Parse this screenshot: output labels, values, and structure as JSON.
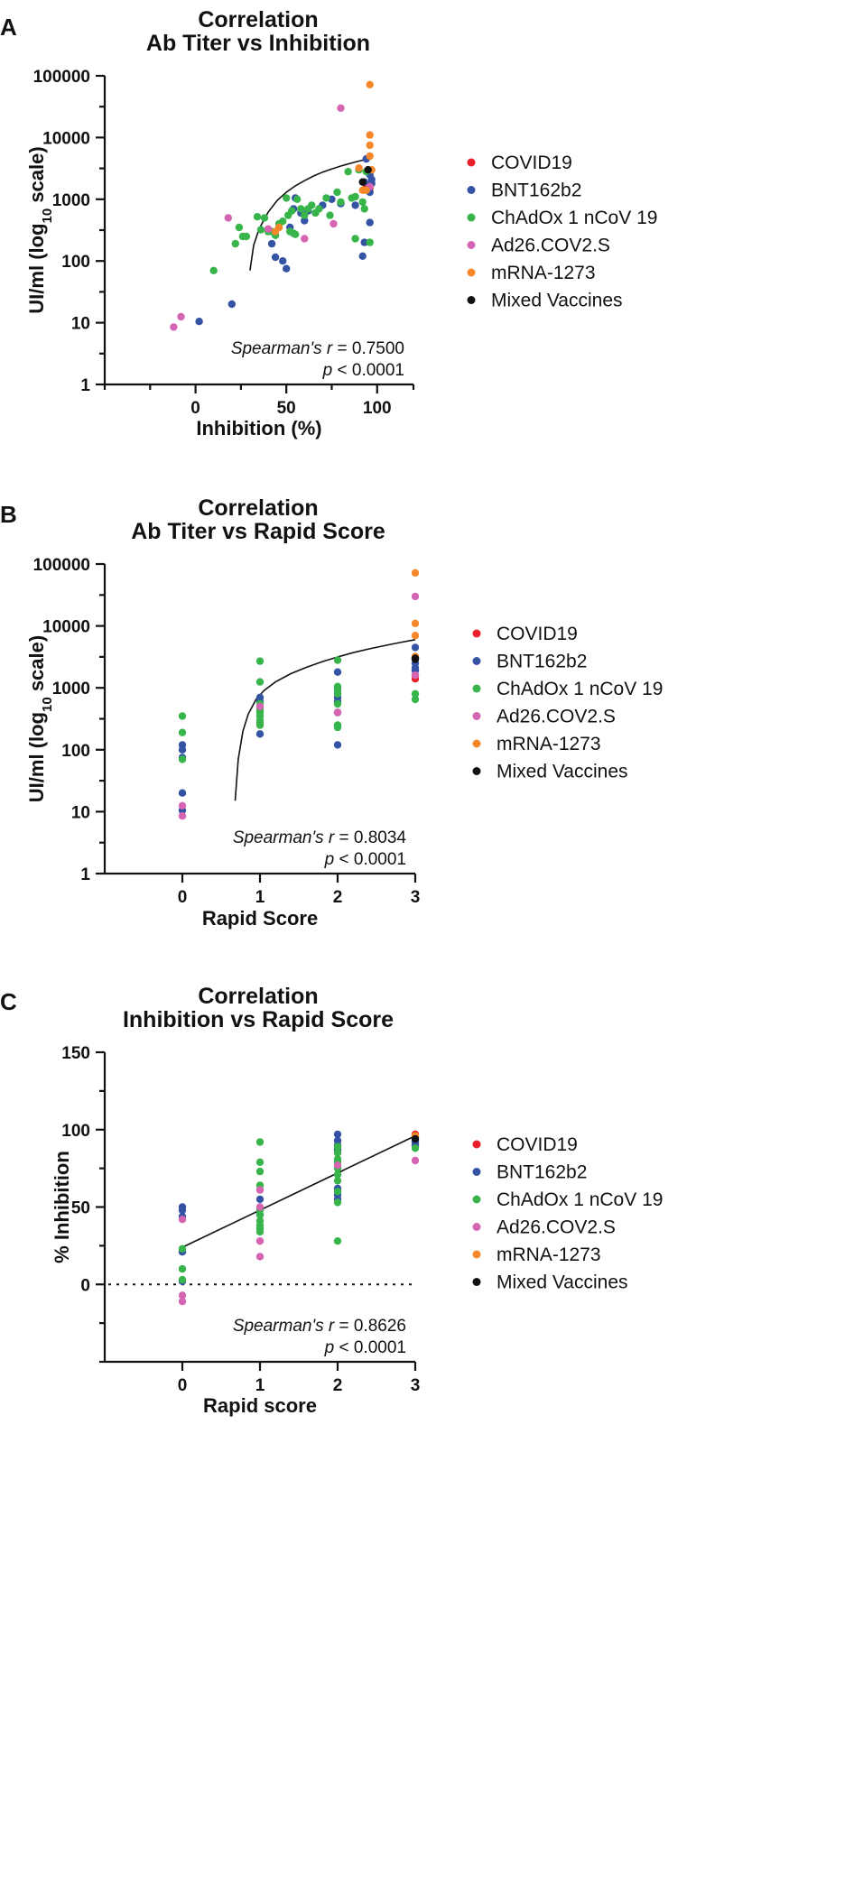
{
  "panels": [
    {
      "letter": "A",
      "title_line1": "Correlation",
      "title_line2": "Ab Titer vs Inhibition",
      "ylabel": "UI/ml (log",
      "ylabel_sub": "10",
      "ylabel_tail": " scale)",
      "xlabel": "Inhibition (%)",
      "stat_label": "Spearman's r",
      "stat_value": " = 0.7500",
      "p_label": "p",
      "p_value": " < 0.0001"
    },
    {
      "letter": "B",
      "title_line1": "Correlation",
      "title_line2": "Ab Titer vs Rapid Score",
      "ylabel": "UI/ml (log",
      "ylabel_sub": "10",
      "ylabel_tail": " scale)",
      "xlabel": "Rapid Score",
      "stat_label": "Spearman's r",
      "stat_value": " = 0.8034",
      "p_label": "p",
      "p_value": " < 0.0001"
    },
    {
      "letter": "C",
      "title_line1": "Correlation",
      "title_line2": "Inhibition vs Rapid Score",
      "ylabel": "% Inhibition",
      "xlabel": "Rapid score",
      "stat_label": "Spearman's r",
      "stat_value": " = 0.8626",
      "p_label": "p",
      "p_value": " < 0.0001"
    }
  ],
  "legend": [
    {
      "name": "COVID19",
      "color": "#e8202a"
    },
    {
      "name": "BNT162b2",
      "color": "#3553a5"
    },
    {
      "name": "ChAdOx 1 nCoV 19",
      "color": "#38b54a"
    },
    {
      "name": "Ad26.COV2.S",
      "color": "#d565b3"
    },
    {
      "name": "mRNA-1273",
      "color": "#f5882b"
    },
    {
      "name": "Mixed Vaccines",
      "color": "#111111"
    }
  ],
  "chart_data": [
    {
      "type": "scatter",
      "title": "Correlation Ab Titer vs Inhibition",
      "xlabel": "Inhibition (%)",
      "ylabel": "UI/ml (log10 scale)",
      "xlim": [
        -50,
        120
      ],
      "ylim": [
        1,
        100000
      ],
      "yscale": "log",
      "xticks": [
        "0",
        "50",
        "100"
      ],
      "xtick_values": [
        0,
        50,
        100
      ],
      "yticks": [
        "1",
        "10",
        "100",
        "1000",
        "10000",
        "100000"
      ],
      "ytick_values": [
        1,
        10,
        100,
        1000,
        10000,
        100000
      ],
      "fit": {
        "kind": "log",
        "x": [
          30,
          32,
          35,
          40,
          45,
          50,
          55,
          60,
          65,
          70,
          75,
          80,
          85,
          90,
          95,
          97
        ],
        "y": [
          70,
          180,
          330,
          620,
          960,
          1300,
          1650,
          2000,
          2380,
          2750,
          3100,
          3450,
          3800,
          4150,
          4500,
          4650
        ]
      },
      "series": [
        {
          "name": "COVID19",
          "points": [
            [
              94,
              1700
            ],
            [
              96,
              1500
            ]
          ]
        },
        {
          "name": "BNT162b2",
          "points": [
            [
              2,
              10.5
            ],
            [
              20,
              20
            ],
            [
              42,
              190
            ],
            [
              44,
              115
            ],
            [
              48,
              100
            ],
            [
              50,
              75
            ],
            [
              52,
              350
            ],
            [
              54,
              700
            ],
            [
              55,
              1050
            ],
            [
              58,
              600
            ],
            [
              60,
              450
            ],
            [
              62,
              650
            ],
            [
              70,
              800
            ],
            [
              75,
              1000
            ],
            [
              80,
              850
            ],
            [
              88,
              800
            ],
            [
              92,
              120
            ],
            [
              93,
              200
            ],
            [
              93,
              1900
            ],
            [
              94,
              4500
            ],
            [
              95,
              3000
            ],
            [
              96,
              2500
            ],
            [
              96,
              1300
            ],
            [
              96,
              420
            ],
            [
              97,
              2100
            ],
            [
              97,
              1800
            ]
          ]
        },
        {
          "name": "ChAdOx 1 nCoV 19",
          "points": [
            [
              10,
              70
            ],
            [
              22,
              190
            ],
            [
              24,
              350
            ],
            [
              26,
              250
            ],
            [
              28,
              250
            ],
            [
              34,
              520
            ],
            [
              36,
              320
            ],
            [
              38,
              500
            ],
            [
              40,
              300
            ],
            [
              42,
              300
            ],
            [
              44,
              260
            ],
            [
              46,
              400
            ],
            [
              48,
              440
            ],
            [
              50,
              1050
            ],
            [
              51,
              550
            ],
            [
              52,
              300
            ],
            [
              53,
              650
            ],
            [
              54,
              280
            ],
            [
              55,
              270
            ],
            [
              56,
              1000
            ],
            [
              58,
              700
            ],
            [
              60,
              550
            ],
            [
              62,
              700
            ],
            [
              64,
              800
            ],
            [
              66,
              600
            ],
            [
              68,
              700
            ],
            [
              72,
              1050
            ],
            [
              74,
              550
            ],
            [
              78,
              1300
            ],
            [
              80,
              900
            ],
            [
              84,
              2800
            ],
            [
              86,
              1050
            ],
            [
              88,
              230
            ],
            [
              88,
              1100
            ],
            [
              90,
              3000
            ],
            [
              92,
              900
            ],
            [
              93,
              700
            ],
            [
              94,
              2800
            ],
            [
              96,
              200
            ]
          ]
        },
        {
          "name": "Ad26.COV2.S",
          "points": [
            [
              -12,
              8.5
            ],
            [
              -8,
              12.5
            ],
            [
              18,
              500
            ],
            [
              40,
              330
            ],
            [
              60,
              230
            ],
            [
              76,
              400
            ],
            [
              80,
              30000
            ],
            [
              96,
              1600
            ]
          ]
        },
        {
          "name": "mRNA-1273",
          "points": [
            [
              44,
              300
            ],
            [
              46,
              350
            ],
            [
              90,
              3200
            ],
            [
              92,
              1400
            ],
            [
              94,
              1400
            ],
            [
              96,
              72000
            ],
            [
              96,
              11000
            ],
            [
              96,
              7500
            ],
            [
              96,
              5000
            ],
            [
              97,
              3000
            ]
          ]
        },
        {
          "name": "Mixed Vaccines",
          "points": [
            [
              92,
              1900
            ],
            [
              95,
              3000
            ]
          ]
        }
      ]
    },
    {
      "type": "scatter",
      "title": "Correlation Ab Titer vs Rapid Score",
      "xlabel": "Rapid Score",
      "ylabel": "UI/ml (log10 scale)",
      "xlim": [
        -1,
        3
      ],
      "ylim": [
        1,
        100000
      ],
      "yscale": "log",
      "xticks": [
        "0",
        "1",
        "2",
        "3"
      ],
      "xtick_values": [
        0,
        1,
        2,
        3
      ],
      "yticks": [
        "1",
        "10",
        "100",
        "1000",
        "10000",
        "100000"
      ],
      "ytick_values": [
        1,
        10,
        100,
        1000,
        10000,
        100000
      ],
      "fit": {
        "kind": "log",
        "x": [
          0.68,
          0.72,
          0.78,
          0.85,
          0.95,
          1.05,
          1.2,
          1.4,
          1.6,
          1.8,
          2.0,
          2.2,
          2.4,
          2.6,
          2.8,
          3.0
        ],
        "y": [
          15,
          70,
          200,
          380,
          650,
          900,
          1250,
          1700,
          2150,
          2650,
          3150,
          3700,
          4250,
          4800,
          5400,
          6000
        ]
      },
      "series": [
        {
          "name": "COVID19",
          "points": [
            [
              3,
              1600
            ],
            [
              3,
              1400
            ]
          ]
        },
        {
          "name": "BNT162b2",
          "points": [
            [
              0,
              120
            ],
            [
              0,
              100
            ],
            [
              0,
              75
            ],
            [
              0,
              20
            ],
            [
              0,
              10.5
            ],
            [
              1,
              700
            ],
            [
              1,
              600
            ],
            [
              1,
              180
            ],
            [
              2,
              1800
            ],
            [
              2,
              1000
            ],
            [
              2,
              700
            ],
            [
              2,
              600
            ],
            [
              2,
              400
            ],
            [
              2,
              120
            ],
            [
              3,
              4500
            ],
            [
              3,
              3000
            ],
            [
              3,
              2500
            ],
            [
              3,
              2100
            ],
            [
              3,
              1900
            ]
          ]
        },
        {
          "name": "ChAdOx 1 nCoV 19",
          "points": [
            [
              0,
              350
            ],
            [
              0,
              190
            ],
            [
              0,
              70
            ],
            [
              1,
              2700
            ],
            [
              1,
              1250
            ],
            [
              1,
              550
            ],
            [
              1,
              450
            ],
            [
              1,
              400
            ],
            [
              1,
              350
            ],
            [
              1,
              300
            ],
            [
              1,
              280
            ],
            [
              1,
              250
            ],
            [
              2,
              2800
            ],
            [
              2,
              1050
            ],
            [
              2,
              900
            ],
            [
              2,
              800
            ],
            [
              2,
              550
            ],
            [
              2,
              250
            ],
            [
              2,
              230
            ],
            [
              3,
              800
            ],
            [
              3,
              650
            ]
          ]
        },
        {
          "name": "Ad26.COV2.S",
          "points": [
            [
              0,
              12.5
            ],
            [
              0,
              8.5
            ],
            [
              1,
              500
            ],
            [
              2,
              400
            ],
            [
              3,
              30000
            ],
            [
              3,
              1600
            ]
          ]
        },
        {
          "name": "mRNA-1273",
          "points": [
            [
              3,
              72000
            ],
            [
              3,
              11000
            ],
            [
              3,
              7000
            ],
            [
              3,
              3200
            ]
          ]
        },
        {
          "name": "Mixed Vaccines",
          "points": [
            [
              3,
              3000
            ],
            [
              3,
              2900
            ]
          ]
        }
      ]
    },
    {
      "type": "scatter",
      "title": "Correlation Inhibition vs Rapid Score",
      "xlabel": "Rapid score",
      "ylabel": "% Inhibition",
      "xlim": [
        -1,
        3
      ],
      "ylim": [
        -50,
        150
      ],
      "yscale": "linear",
      "xticks": [
        "0",
        "1",
        "2",
        "3"
      ],
      "xtick_values": [
        0,
        1,
        2,
        3
      ],
      "yticks": [
        "0",
        "50",
        "100",
        "150"
      ],
      "ytick_values": [
        0,
        50,
        100,
        150
      ],
      "zero_line": 0,
      "fit": {
        "kind": "linear",
        "x": [
          0,
          3
        ],
        "y": [
          24,
          96
        ]
      },
      "series": [
        {
          "name": "COVID19",
          "points": [
            [
              3,
              97
            ],
            [
              3,
              95
            ]
          ]
        },
        {
          "name": "BNT162b2",
          "points": [
            [
              0,
              50
            ],
            [
              0,
              48
            ],
            [
              0,
              44
            ],
            [
              0,
              21
            ],
            [
              0,
              2
            ],
            [
              1,
              55
            ],
            [
              1,
              45
            ],
            [
              2,
              97
            ],
            [
              2,
              93
            ],
            [
              2,
              90
            ],
            [
              2,
              87
            ],
            [
              2,
              62
            ],
            [
              2,
              58
            ],
            [
              2,
              55
            ],
            [
              3,
              93
            ],
            [
              3,
              92
            ],
            [
              3,
              90
            ]
          ]
        },
        {
          "name": "ChAdOx 1 nCoV 19",
          "points": [
            [
              0,
              23
            ],
            [
              0,
              10
            ],
            [
              0,
              3
            ],
            [
              1,
              92
            ],
            [
              1,
              79
            ],
            [
              1,
              73
            ],
            [
              1,
              64
            ],
            [
              1,
              48
            ],
            [
              1,
              45
            ],
            [
              1,
              41
            ],
            [
              1,
              38
            ],
            [
              1,
              36
            ],
            [
              1,
              34
            ],
            [
              2,
              89
            ],
            [
              2,
              85
            ],
            [
              2,
              81
            ],
            [
              2,
              79
            ],
            [
              2,
              75
            ],
            [
              2,
              71
            ],
            [
              2,
              67
            ],
            [
              2,
              60
            ],
            [
              2,
              53
            ],
            [
              2,
              28
            ],
            [
              3,
              88
            ]
          ]
        },
        {
          "name": "Ad26.COV2.S",
          "points": [
            [
              0,
              42
            ],
            [
              0,
              -7
            ],
            [
              0,
              -11
            ],
            [
              1,
              61
            ],
            [
              1,
              50
            ],
            [
              1,
              28
            ],
            [
              1,
              18
            ],
            [
              2,
              77
            ],
            [
              3,
              80
            ]
          ]
        },
        {
          "name": "mRNA-1273",
          "points": [
            [
              3,
              96
            ]
          ]
        },
        {
          "name": "Mixed Vaccines",
          "points": [
            [
              3,
              94
            ]
          ]
        }
      ]
    }
  ]
}
